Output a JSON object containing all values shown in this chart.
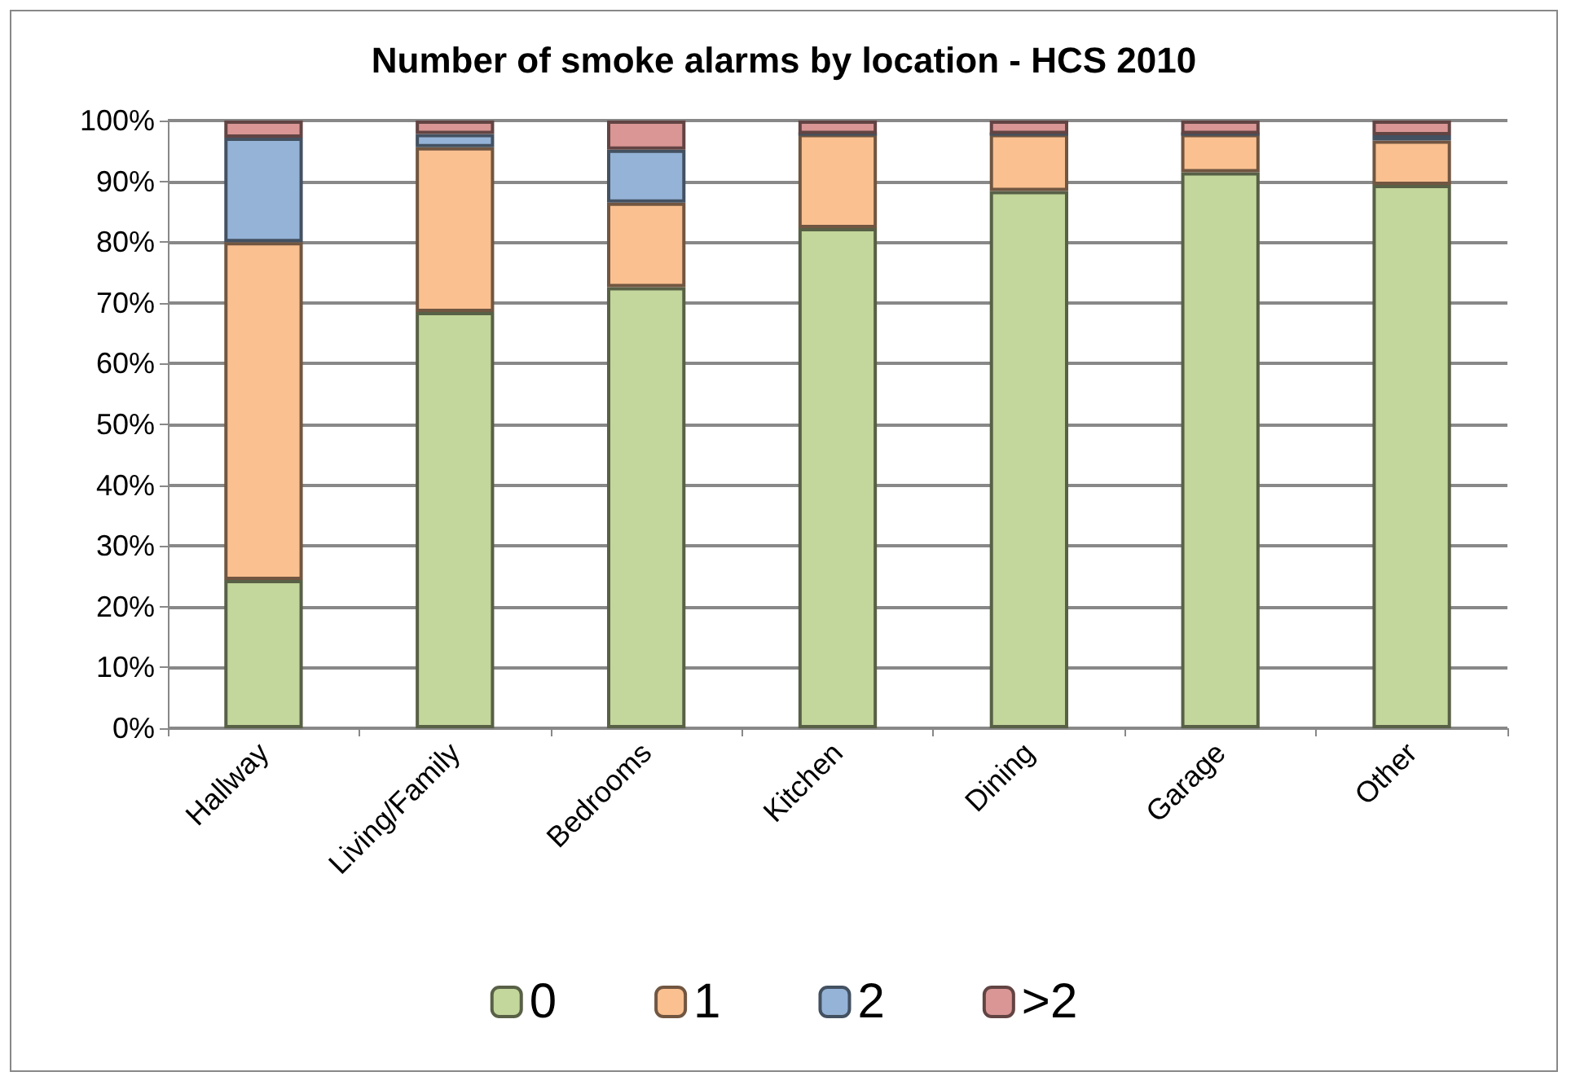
{
  "chart_data": {
    "type": "bar",
    "title": "Number of smoke alarms by location - HCS 2010",
    "categories": [
      "Hallway",
      "Living/Family",
      "Bedrooms",
      "Kitchen",
      "Dining",
      "Garage",
      "Other"
    ],
    "stacked": true,
    "series": [
      {
        "name": "0",
        "color": "#c3d69b",
        "values": [
          24.4,
          68.5,
          72.6,
          82.3,
          88.4,
          91.5,
          89.4
        ]
      },
      {
        "name": "1",
        "color": "#fac090",
        "values": [
          55.6,
          27.1,
          13.9,
          15.5,
          9.4,
          6.3,
          7.3
        ]
      },
      {
        "name": "2",
        "color": "#95b3d7",
        "values": [
          17.2,
          2.2,
          8.7,
          0,
          0,
          0,
          0.9
        ]
      },
      {
        "name": ">2",
        "color": "#d99694",
        "values": [
          2.8,
          2.2,
          4.8,
          2.2,
          2.2,
          2.2,
          2.4
        ]
      }
    ],
    "ylim": [
      0,
      100
    ],
    "yticks": [
      {
        "value": 0,
        "label": "0%"
      },
      {
        "value": 10,
        "label": "10%"
      },
      {
        "value": 20,
        "label": "20%"
      },
      {
        "value": 30,
        "label": "30%"
      },
      {
        "value": 40,
        "label": "40%"
      },
      {
        "value": 50,
        "label": "50%"
      },
      {
        "value": 60,
        "label": "60%"
      },
      {
        "value": 70,
        "label": "70%"
      },
      {
        "value": 80,
        "label": "80%"
      },
      {
        "value": 90,
        "label": "90%"
      },
      {
        "value": 100,
        "label": "100%"
      }
    ],
    "grid": "y",
    "legend": "bottom"
  }
}
